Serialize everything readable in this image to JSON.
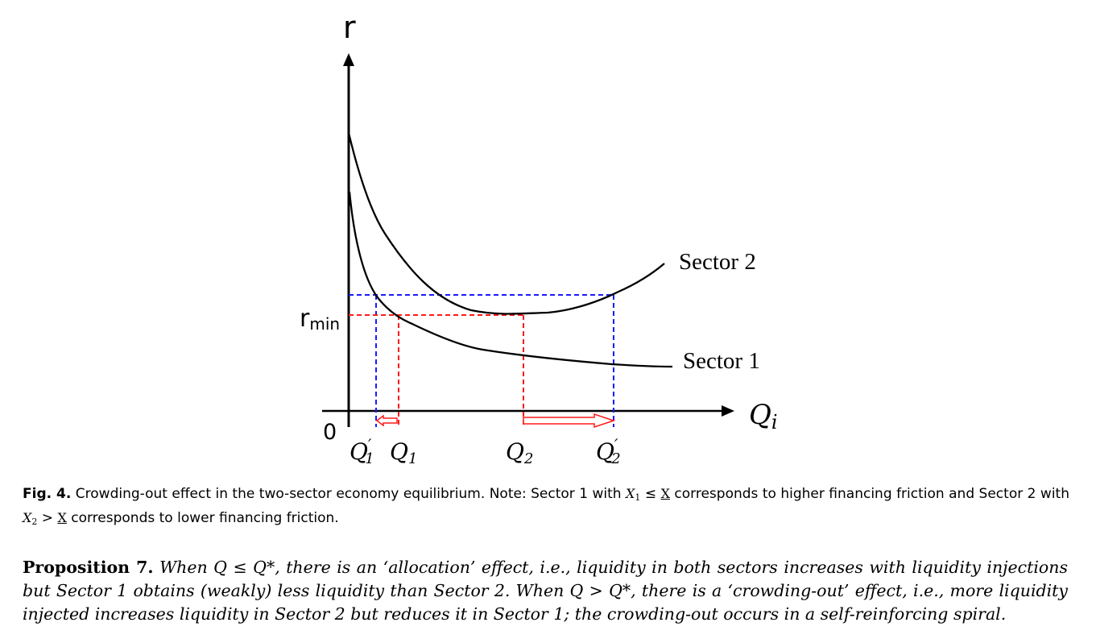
{
  "figure": {
    "y_axis_label": "r",
    "x_axis_label": "Q",
    "x_axis_label_sub": "i",
    "origin_label": "0",
    "r_min_label": "r",
    "r_min_sub": "min",
    "q1_prime": "Q",
    "q1_prime_sub": "1",
    "q1": "Q",
    "q1_sub": "1",
    "q2": "Q",
    "q2_sub": "2",
    "q2_prime": "Q",
    "q2_prime_sub": "2",
    "prime_mark": "′",
    "sector2_label": "Sector 2",
    "sector1_label": "Sector 1",
    "colors": {
      "blue_guides": "#1a1aff",
      "red_guides": "#ff1a1a",
      "curves": "#000000"
    }
  },
  "caption": {
    "label": "Fig. 4.",
    "text1": " Crowding-out effect in the two-sector economy equilibrium. Note: Sector 1 with ",
    "x1": "X",
    "x1_sub": "1",
    "rel1": " ≤ ",
    "xbar1": "X",
    "text2": " corresponds to higher financing friction and Sector 2 with ",
    "x2": "X",
    "x2_sub": "2",
    "rel2": " > ",
    "xbar2": "X",
    "text3": " corresponds to lower financing friction."
  },
  "proposition": {
    "label": "Proposition 7.",
    "text": " When Q ≤ Q*, there is an ‘allocation’ effect, i.e., liquidity in both sectors increases with liquidity injections but Sector 1 obtains (weakly) less liquidity than Sector 2. When Q > Q*, there is a ‘crowding-out’ effect, i.e., more liquidity injected increases liquidity in Sector 2 but reduces it in Sector 1; the crowding-out occurs in a self-reinforcing spiral."
  }
}
